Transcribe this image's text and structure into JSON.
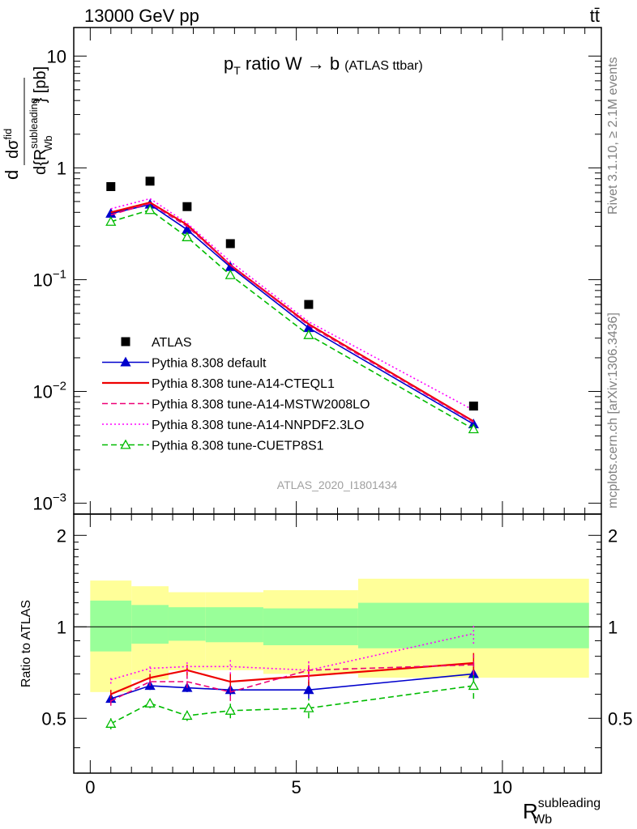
{
  "header": {
    "energy_label": "13000 GeV pp",
    "process_label": "tt̄",
    "plot_title": "p",
    "plot_title_sub": "T",
    "plot_title_rest": " ratio W → b",
    "plot_title_small": "(ATLAS ttbar)",
    "analysis_label": "ATLAS_2020_I1801434",
    "rivet_label": "Rivet 3.1.10, ≥ 2.1M events",
    "mcplots_label": "mcplots.cern.ch [arXiv:1306.3436]"
  },
  "axes": {
    "upper_ylabel_num": "dσ",
    "upper_ylabel_num_sup": "fid",
    "upper_ylabel_den": "d{R",
    "upper_ylabel_den_sup": "subleading",
    "upper_ylabel_den_sub": "Wb",
    "upper_ylabel_den_end": "} [pb]",
    "upper_ylabel_d": "d",
    "ratio_ylabel": "Ratio to ATLAS",
    "xlabel_main": "R",
    "xlabel_sup": "subleading",
    "xlabel_sub": "Wb",
    "upper_yticks": [
      {
        "base": "10",
        "exp": "",
        "value": 10
      },
      {
        "base": "1",
        "exp": "",
        "value": 1
      },
      {
        "base": "10",
        "exp": "−1",
        "value": 0.1
      },
      {
        "base": "10",
        "exp": "−2",
        "value": 0.01
      },
      {
        "base": "10",
        "exp": "−3",
        "value": 0.001
      }
    ],
    "ratio_yticks": [
      "0.5",
      "1",
      "2"
    ],
    "xticks": [
      "0",
      "5",
      "10"
    ]
  },
  "chart_data": {
    "type": "line",
    "x_bins": [
      [
        0,
        1
      ],
      [
        1,
        1.9
      ],
      [
        1.9,
        2.8
      ],
      [
        2.8,
        4.2
      ],
      [
        4.2,
        6.5
      ],
      [
        6.5,
        12.1
      ]
    ],
    "x": [
      0.5,
      1.45,
      2.35,
      3.4,
      5.3,
      9.3
    ],
    "xlim": [
      -0.4,
      12.4
    ],
    "upper_ylim": [
      0.0008,
      18
    ],
    "upper_yscale": "log",
    "ratio_ylim": [
      0.33,
      2.35
    ],
    "data": {
      "name": "ATLAS",
      "values": [
        0.68,
        0.76,
        0.45,
        0.21,
        0.06,
        0.0074
      ]
    },
    "series": [
      {
        "name": "Pythia 8.308 default",
        "color": "#0000cc",
        "style": "solid",
        "marker": "triangle-filled",
        "values": [
          0.39,
          0.47,
          0.28,
          0.13,
          0.037,
          0.0051
        ],
        "ratio": [
          0.58,
          0.64,
          0.63,
          0.62,
          0.62,
          0.7
        ],
        "ratio_err": [
          0.02,
          0.02,
          0.02,
          0.03,
          0.04,
          0.06
        ]
      },
      {
        "name": "Pythia 8.308 tune-A14-CTEQL1",
        "color": "#ee0000",
        "style": "solid",
        "marker": "none",
        "values": [
          0.4,
          0.49,
          0.31,
          0.135,
          0.04,
          0.0054
        ],
        "ratio": [
          0.6,
          0.68,
          0.72,
          0.66,
          0.69,
          0.76
        ],
        "ratio_err": [
          0.02,
          0.02,
          0.03,
          0.04,
          0.05,
          0.06
        ]
      },
      {
        "name": "Pythia 8.308 tune-A14-MSTW2008LO",
        "color": "#ee0077",
        "style": "dashed",
        "marker": "none",
        "values": [
          0.38,
          0.48,
          0.3,
          0.135,
          0.039,
          0.0053
        ],
        "ratio": [
          0.57,
          0.66,
          0.66,
          0.61,
          0.72,
          0.75
        ],
        "ratio_err": [
          0.02,
          0.02,
          0.03,
          0.04,
          0.05,
          0.06
        ]
      },
      {
        "name": "Pythia 8.308 tune-A14-NNPDF2.3LO",
        "color": "#ff00ff",
        "style": "dotted",
        "marker": "none",
        "values": [
          0.43,
          0.53,
          0.32,
          0.145,
          0.042,
          0.0068
        ],
        "ratio": [
          0.67,
          0.73,
          0.74,
          0.74,
          0.72,
          0.95
        ],
        "ratio_err": [
          0.02,
          0.02,
          0.03,
          0.04,
          0.05,
          0.07
        ]
      },
      {
        "name": "Pythia 8.308 tune-CUETP8S1",
        "color": "#00bb00",
        "style": "dashed",
        "marker": "triangle-open",
        "values": [
          0.33,
          0.42,
          0.24,
          0.11,
          0.032,
          0.0046
        ],
        "ratio": [
          0.48,
          0.56,
          0.51,
          0.53,
          0.54,
          0.64
        ],
        "ratio_err": [
          0.02,
          0.02,
          0.02,
          0.03,
          0.04,
          0.06
        ]
      }
    ],
    "uncertainty_bands": {
      "inner_color": "#99ff99",
      "outer_color": "#ffff99",
      "inner": [
        [
          0.83,
          1.22
        ],
        [
          0.88,
          1.18
        ],
        [
          0.9,
          1.16
        ],
        [
          0.89,
          1.16
        ],
        [
          0.87,
          1.15
        ],
        [
          0.85,
          1.2
        ]
      ],
      "outer": [
        [
          0.61,
          1.42
        ],
        [
          0.67,
          1.36
        ],
        [
          0.72,
          1.3
        ],
        [
          0.72,
          1.3
        ],
        [
          0.7,
          1.32
        ],
        [
          0.68,
          1.44
        ]
      ]
    }
  }
}
